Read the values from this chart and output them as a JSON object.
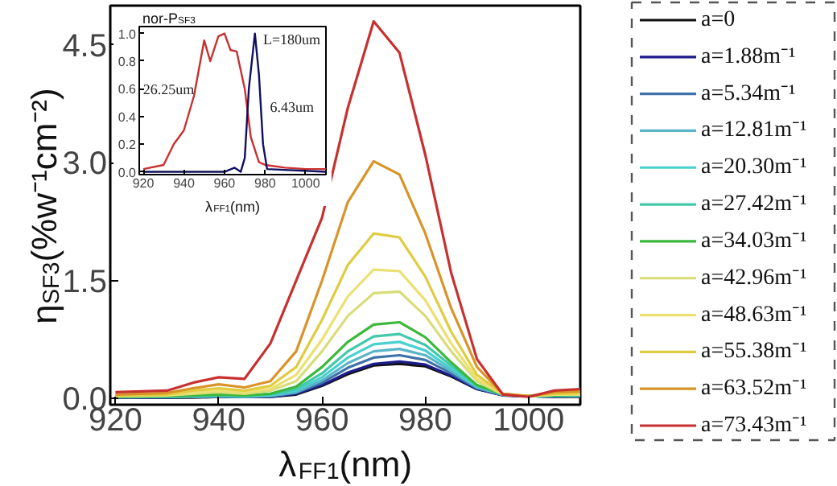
{
  "chart_data": [
    {
      "type": "line",
      "xlabel": "λ$_{FF1}$(nm)",
      "ylabel": "η$_{SF3}$(%w⁻¹cm⁻²)",
      "xlim": [
        919,
        1010
      ],
      "ylim": [
        -0.08,
        5.0
      ],
      "xticks": [
        920,
        940,
        960,
        980,
        1000
      ],
      "yticks": [
        {
          "value": 0,
          "label": "0.0"
        },
        {
          "value": 1.5,
          "label": "1.5"
        },
        {
          "value": 3,
          "label": "3.0"
        },
        {
          "value": 4.5,
          "label": "4.5"
        }
      ],
      "legend": "right",
      "x": [
        920,
        930,
        935,
        940,
        945,
        950,
        955,
        960,
        965,
        970,
        975,
        980,
        985,
        990,
        995,
        1000,
        1005,
        1010
      ],
      "series": [
        {
          "name": "a=0",
          "color": "#111111",
          "values": [
            0.01,
            0.01,
            0.01,
            0.02,
            0.02,
            0.02,
            0.05,
            0.16,
            0.31,
            0.42,
            0.44,
            0.41,
            0.28,
            0.12,
            0.04,
            0.03,
            0.02,
            0.02
          ]
        },
        {
          "name": "a=1.88m⁻¹",
          "color": "#1c1c8c",
          "values": [
            0.01,
            0.01,
            0.02,
            0.02,
            0.02,
            0.02,
            0.06,
            0.17,
            0.33,
            0.44,
            0.47,
            0.43,
            0.29,
            0.12,
            0.04,
            0.03,
            0.02,
            0.03
          ]
        },
        {
          "name": "a=5.34m⁻¹",
          "color": "#3f72a8",
          "values": [
            0.01,
            0.02,
            0.02,
            0.02,
            0.02,
            0.03,
            0.07,
            0.2,
            0.39,
            0.52,
            0.55,
            0.49,
            0.32,
            0.13,
            0.04,
            0.03,
            0.03,
            0.03
          ]
        },
        {
          "name": "a=12.81m⁻¹",
          "color": "#5ab4c8",
          "values": [
            0.02,
            0.02,
            0.02,
            0.03,
            0.02,
            0.03,
            0.08,
            0.23,
            0.45,
            0.6,
            0.63,
            0.55,
            0.35,
            0.14,
            0.05,
            0.03,
            0.03,
            0.03
          ]
        },
        {
          "name": "a=20.30m⁻¹",
          "color": "#48d0d0",
          "values": [
            0.02,
            0.02,
            0.03,
            0.03,
            0.03,
            0.04,
            0.1,
            0.27,
            0.52,
            0.69,
            0.72,
            0.61,
            0.38,
            0.15,
            0.05,
            0.03,
            0.03,
            0.04
          ]
        },
        {
          "name": "a=27.42m⁻¹",
          "color": "#40c8a8",
          "values": [
            0.02,
            0.02,
            0.03,
            0.04,
            0.03,
            0.05,
            0.12,
            0.32,
            0.6,
            0.79,
            0.82,
            0.68,
            0.42,
            0.16,
            0.05,
            0.03,
            0.04,
            0.04
          ]
        },
        {
          "name": "a=34.03m⁻¹",
          "color": "#3cb83c",
          "values": [
            0.02,
            0.03,
            0.04,
            0.05,
            0.04,
            0.06,
            0.15,
            0.4,
            0.72,
            0.94,
            0.97,
            0.78,
            0.46,
            0.17,
            0.05,
            0.03,
            0.04,
            0.05
          ]
        },
        {
          "name": "a=42.96m⁻¹",
          "color": "#d8dc78",
          "values": [
            0.03,
            0.04,
            0.06,
            0.08,
            0.06,
            0.1,
            0.22,
            0.6,
            1.05,
            1.34,
            1.36,
            1.05,
            0.6,
            0.22,
            0.05,
            0.03,
            0.05,
            0.05
          ]
        },
        {
          "name": "a=48.63m⁻¹",
          "color": "#ece070",
          "values": [
            0.03,
            0.04,
            0.08,
            0.1,
            0.08,
            0.12,
            0.3,
            0.75,
            1.3,
            1.64,
            1.62,
            1.25,
            0.7,
            0.25,
            0.06,
            0.03,
            0.05,
            0.06
          ]
        },
        {
          "name": "a=55.38m⁻¹",
          "color": "#e0cc40",
          "values": [
            0.04,
            0.05,
            0.1,
            0.13,
            0.1,
            0.16,
            0.4,
            1.0,
            1.7,
            2.1,
            2.05,
            1.55,
            0.85,
            0.3,
            0.06,
            0.03,
            0.06,
            0.07
          ]
        },
        {
          "name": "a=63.52m⁻¹",
          "color": "#d89428",
          "values": [
            0.05,
            0.07,
            0.13,
            0.18,
            0.14,
            0.22,
            0.6,
            1.5,
            2.5,
            3.02,
            2.85,
            2.1,
            1.15,
            0.4,
            0.06,
            0.03,
            0.08,
            0.09
          ]
        },
        {
          "name": "a=73.43m⁻¹",
          "color": "#c83030",
          "values": [
            0.08,
            0.1,
            0.2,
            0.27,
            0.25,
            0.7,
            1.5,
            2.3,
            3.7,
            4.8,
            4.4,
            3.1,
            1.6,
            0.5,
            0.05,
            0.02,
            0.1,
            0.12
          ]
        }
      ]
    },
    {
      "type": "line",
      "title": "nor-P$_{SF3}$",
      "xlabel": "λ$_{FF1}$(nm)",
      "xlim": [
        918,
        1010
      ],
      "ylim": [
        -0.02,
        1.05
      ],
      "xticks": [
        920,
        940,
        960,
        980,
        1000
      ],
      "yticks": [
        {
          "value": 0,
          "label": "0.0"
        },
        {
          "value": 0.2,
          "label": "0.2"
        },
        {
          "value": 0.4,
          "label": "0.4"
        },
        {
          "value": 0.6,
          "label": "0.6"
        },
        {
          "value": 0.8,
          "label": "0.8"
        },
        {
          "value": 1,
          "label": "1.0"
        }
      ],
      "annotations": [
        "26.25um",
        "6.43um",
        "L=180um"
      ],
      "series": [
        {
          "color": "#c83030",
          "x": [
            920,
            930,
            935,
            940,
            945,
            950,
            953,
            957,
            960,
            963,
            966,
            970,
            973,
            977,
            980,
            990,
            1000,
            1010
          ],
          "values": [
            0.02,
            0.05,
            0.2,
            0.3,
            0.55,
            0.95,
            0.8,
            0.98,
            1.0,
            0.88,
            0.87,
            0.6,
            0.25,
            0.07,
            0.05,
            0.03,
            0.02,
            0.02
          ]
        },
        {
          "color": "#101060",
          "x": [
            920,
            960,
            965,
            968,
            970,
            972,
            975,
            977,
            979,
            981,
            1010
          ],
          "values": [
            0,
            0,
            0.03,
            0,
            0.1,
            0.6,
            1.0,
            0.7,
            0.2,
            0.02,
            0
          ]
        }
      ]
    }
  ]
}
